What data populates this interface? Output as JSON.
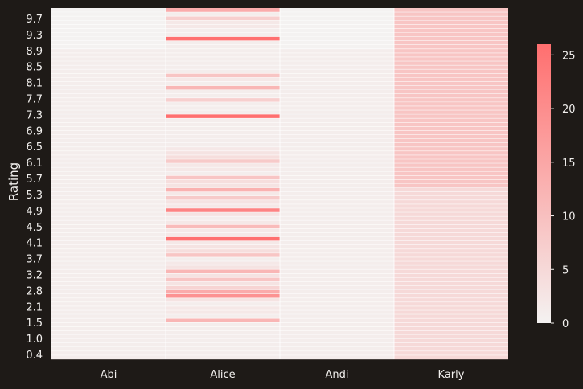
{
  "chart_data": {
    "type": "heatmap",
    "ylabel": "Rating",
    "xlabel": "",
    "title": "",
    "columns": [
      "Abi",
      "Alice",
      "Andi",
      "Karly"
    ],
    "ytick_labels": [
      "9.7",
      "9.3",
      "8.9",
      "8.5",
      "8.1",
      "7.7",
      "7.3",
      "6.9",
      "6.5",
      "6.1",
      "5.7",
      "5.3",
      "4.9",
      "4.5",
      "4.1",
      "3.7",
      "3.2",
      "2.8",
      "2.1",
      "1.5",
      "1.0",
      "0.4"
    ],
    "colorbar": {
      "min": 0,
      "max": 26,
      "ticks": [
        0,
        5,
        10,
        15,
        20,
        25
      ]
    },
    "colors": {
      "low": "#f4f2f1",
      "high": "#ff6f6f",
      "background": "#1e1a17",
      "gridline": "#ffffff"
    },
    "n_rows": 86,
    "note_rows": "rows ordered top (highest rating) to bottom (lowest rating)",
    "column_default": {
      "Abi": 0.5,
      "Alice": 1,
      "Andi": 0.3,
      "Karly": 3
    },
    "column_values": {
      "Abi": [
        0,
        0,
        0,
        0,
        0,
        0,
        0,
        0,
        0,
        0,
        1,
        1,
        1,
        1,
        1,
        1,
        1,
        1,
        1,
        1,
        1,
        1,
        1,
        1,
        1,
        1,
        1,
        1,
        1,
        1,
        1,
        1,
        1,
        1,
        1,
        1,
        1,
        1,
        1,
        1,
        1,
        1,
        1,
        1,
        1,
        1,
        1,
        1,
        1,
        1,
        1,
        1,
        1,
        1,
        1,
        1,
        1,
        1,
        1,
        1,
        1,
        1,
        1,
        1,
        1,
        1,
        1,
        1,
        1,
        1,
        1,
        1,
        1,
        1,
        1,
        1,
        1,
        1,
        1,
        1,
        1,
        1,
        1,
        1,
        1,
        1
      ],
      "Alice": [
        14,
        1,
        7,
        2,
        2,
        1,
        1,
        26,
        1,
        1,
        1,
        1,
        1,
        1,
        1,
        1,
        9,
        2,
        1,
        12,
        1,
        1,
        7,
        1,
        1,
        1,
        26,
        1,
        1,
        1,
        1,
        1,
        1,
        1,
        2,
        3,
        4,
        8,
        2,
        2,
        1,
        9,
        4,
        3,
        13,
        2,
        8,
        3,
        2,
        22,
        3,
        1,
        2,
        11,
        2,
        2,
        26,
        2,
        3,
        4,
        9,
        1,
        2,
        3,
        12,
        3,
        9,
        3,
        6,
        14,
        19,
        3,
        1,
        2,
        2,
        1,
        12,
        1,
        1,
        1,
        1,
        1,
        1,
        1,
        1,
        1
      ],
      "Andi": [
        0,
        0,
        0,
        0,
        0,
        0,
        0,
        0,
        0,
        0,
        1,
        1,
        1,
        1,
        1,
        1,
        1,
        1,
        1,
        1,
        1,
        1,
        1,
        1,
        1,
        1,
        1,
        1,
        1,
        1,
        1,
        1,
        1,
        1,
        1,
        1,
        1,
        1,
        1,
        1,
        1,
        1,
        1,
        1,
        1,
        1,
        1,
        1,
        1,
        1,
        1,
        1,
        1,
        1,
        1,
        1,
        1,
        1,
        1,
        1,
        1,
        1,
        1,
        1,
        1,
        1,
        1,
        1,
        1,
        1,
        1,
        1,
        1,
        1,
        1,
        1,
        1,
        1,
        1,
        1,
        1,
        1,
        1,
        1,
        1,
        1
      ],
      "Karly": [
        9,
        9,
        9,
        9,
        9,
        9,
        9,
        9,
        9,
        9,
        9,
        9,
        9,
        9,
        9,
        9,
        9,
        9,
        9,
        9,
        9,
        9,
        9,
        9,
        9,
        9,
        9,
        9,
        9,
        9,
        9,
        9,
        9,
        9,
        9,
        9,
        9,
        9,
        9,
        9,
        9,
        9,
        9,
        9,
        5,
        5,
        5,
        5,
        5,
        5,
        5,
        5,
        5,
        5,
        5,
        5,
        5,
        5,
        5,
        5,
        5,
        5,
        5,
        5,
        5,
        5,
        5,
        5,
        5,
        5,
        5,
        5,
        5,
        5,
        5,
        5,
        5,
        5,
        5,
        5,
        5,
        5,
        5,
        5,
        5,
        5
      ]
    }
  }
}
